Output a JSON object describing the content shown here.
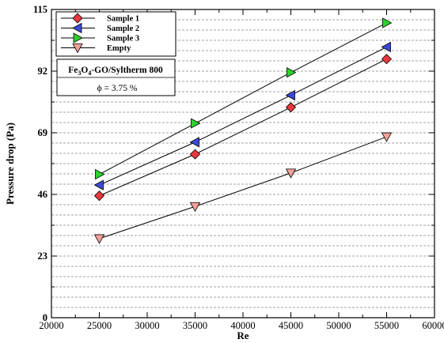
{
  "chart_data": {
    "type": "scatter",
    "xlabel": "Re",
    "ylabel": "Pressure drop (Pa)",
    "xlim": [
      20000,
      60000
    ],
    "ylim": [
      0,
      115
    ],
    "xticks": [
      "20000",
      "25000",
      "30000",
      "35000",
      "40000",
      "45000",
      "50000",
      "55000",
      "60000"
    ],
    "yticks": [
      "0",
      "23",
      "46",
      "69",
      "92",
      "115"
    ],
    "grid": "horizontal dashed",
    "legend_position": "top-left",
    "annotation": {
      "fluid_prefix": "Fe",
      "fe_sub": "3",
      "o_char": "O",
      "o_sub": "4",
      "fluid_suffix": "-GO/Syltherm 800",
      "phi_text": "ϕ = 3.75 %"
    },
    "x": [
      25000,
      35000,
      45000,
      55000
    ],
    "series": [
      {
        "name": "Sample 1",
        "marker": "diamond",
        "color": "#e8383d",
        "values": [
          45.5,
          61,
          78.5,
          96.5
        ]
      },
      {
        "name": "Sample 2",
        "marker": "triangle-left",
        "color": "#3b49d6",
        "values": [
          49.5,
          65.5,
          83,
          101
        ]
      },
      {
        "name": "Sample 3",
        "marker": "triangle-right",
        "color": "#2bd22b",
        "values": [
          53.5,
          72.5,
          91.5,
          110
        ]
      },
      {
        "name": "Empty",
        "marker": "triangle-down",
        "color": "#f4a09a",
        "values": [
          29.5,
          41.5,
          54,
          67.5
        ]
      }
    ]
  }
}
